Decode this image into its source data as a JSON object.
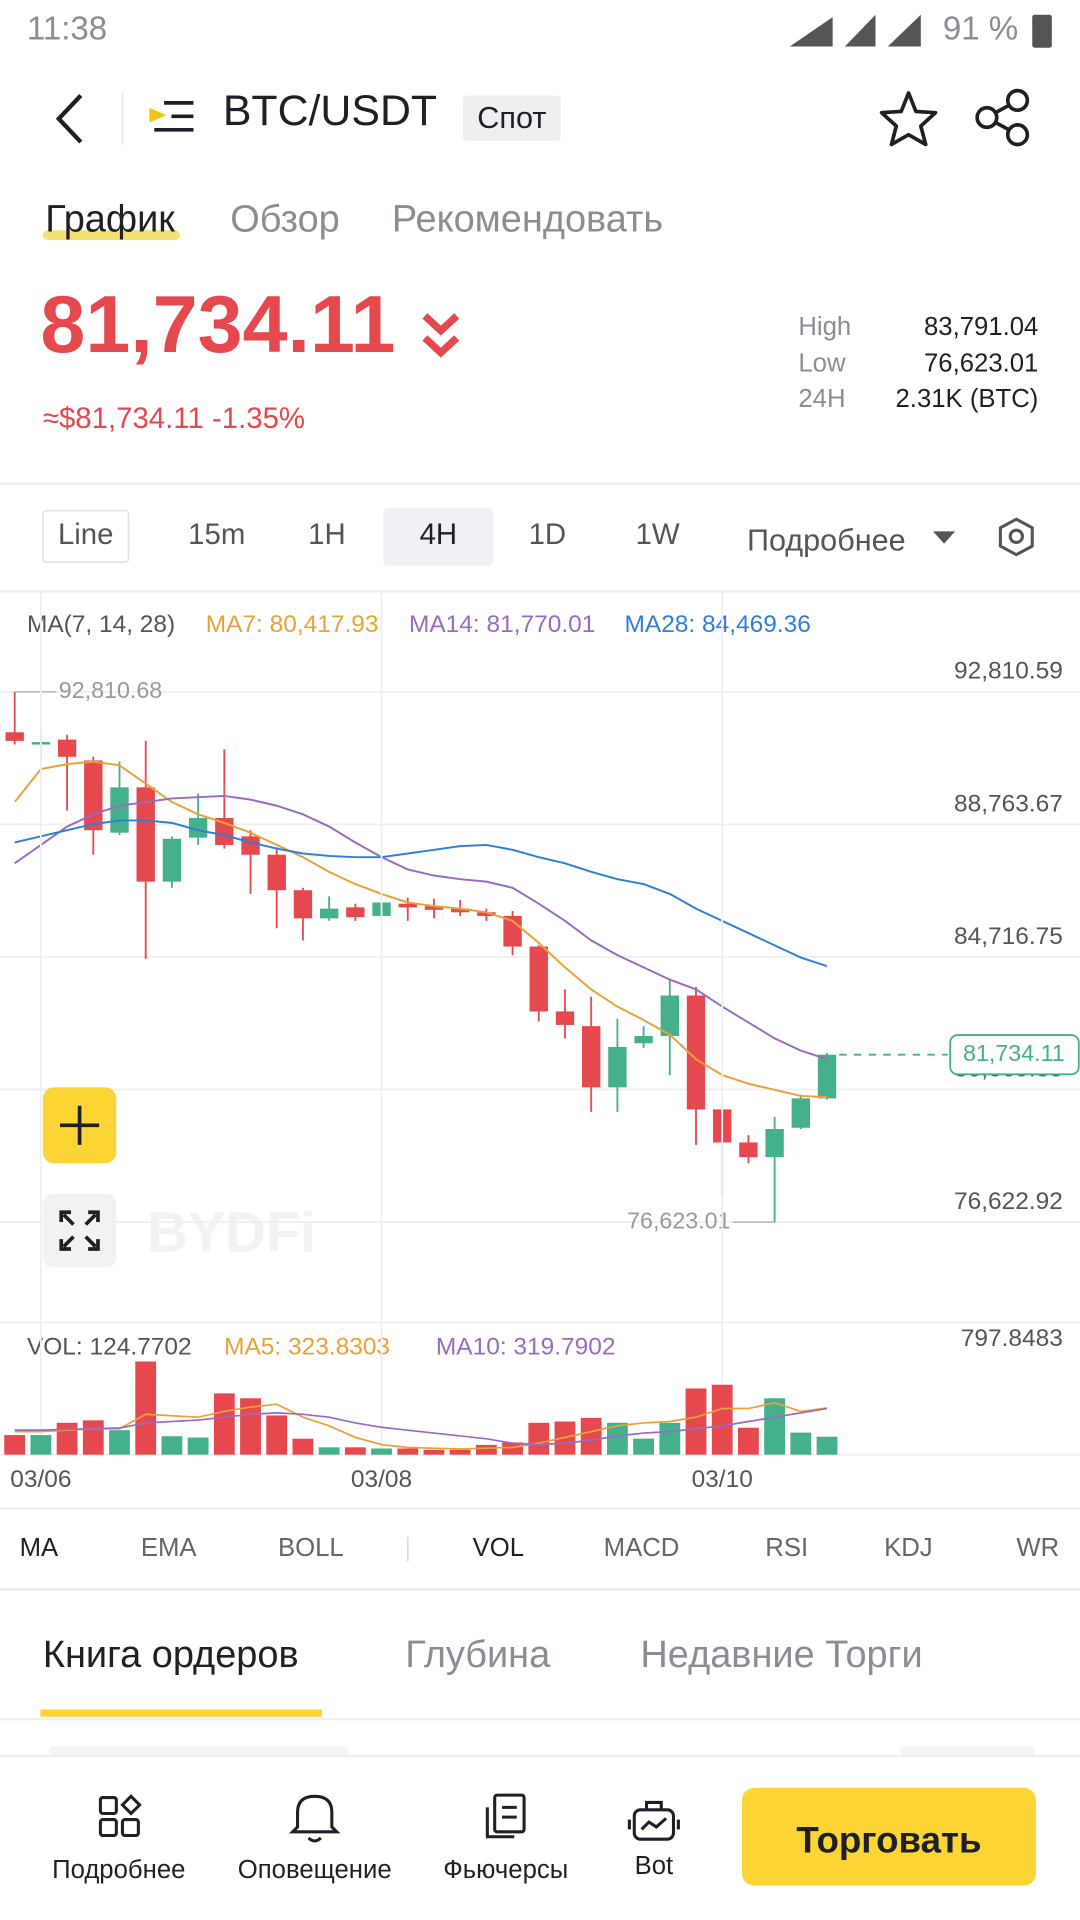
{
  "status_bar": {
    "time": "11:38",
    "battery": "91 %"
  },
  "header": {
    "pair": "BTC/USDT",
    "market": "Спот"
  },
  "tabs": [
    "График",
    "Обзор",
    "Рекомендовать"
  ],
  "ticker": {
    "price": "81,734.11",
    "sub": "≈$81,734.11 -1.35%"
  },
  "stats": [
    {
      "label": "High",
      "value": "83,791.04"
    },
    {
      "label": "Low",
      "value": "76,623.01"
    },
    {
      "label": "24H",
      "value": "2.31K (BTC)"
    }
  ],
  "intervals": [
    "Line",
    "15m",
    "1H",
    "4H",
    "1D",
    "1W"
  ],
  "more": "Подробнее",
  "watermark": "BYDFi",
  "indicators": [
    "MA",
    "EMA",
    "BOLL",
    "VOL",
    "MACD",
    "RSI",
    "KDJ",
    "WR"
  ],
  "book_tabs": [
    "Книга ордеров",
    "Глубина",
    "Недавние Торги"
  ],
  "nav": [
    "Подробнее",
    "Оповещение",
    "Фьючерсы",
    "Bot"
  ],
  "trade_button": "Торговать",
  "chart_data": [
    {
      "type": "candlestick",
      "legend_title": "MA(7, 14, 28)",
      "up_color": "#45b08c",
      "down_color": "#e5484d",
      "open": [
        91577,
        91203,
        91353,
        90717,
        88512,
        89895,
        87017,
        88362,
        88961,
        88400,
        87839,
        86755,
        85896,
        86232,
        85970,
        86344,
        86269,
        86194,
        86082,
        85970,
        85036,
        83055,
        82606,
        80737,
        82083,
        82307,
        83541,
        80064,
        79055,
        78606,
        79504,
        80401
      ],
      "high": [
        92810.68,
        91615,
        91502,
        90830,
        90680,
        91315,
        88400,
        89708,
        91054,
        88587,
        88064,
        86830,
        86568,
        86344,
        86531,
        86531,
        86494,
        86456,
        86194,
        86120,
        85073,
        83727,
        83503,
        82831,
        82606,
        84027,
        83802,
        80214,
        79279,
        79840,
        80513,
        81784
      ],
      "low": [
        91203,
        90755,
        89185,
        87839,
        88437,
        84662,
        86830,
        88138,
        88026,
        86643,
        85596,
        85223,
        85820,
        85820,
        85820,
        85820,
        85896,
        85970,
        85820,
        84774,
        82756,
        82232,
        79990,
        79990,
        81933,
        81111,
        78980,
        77410,
        78420,
        76623.01,
        79466,
        80363
      ],
      "close": [
        91315,
        91278,
        90830,
        88587,
        89895,
        87017,
        88325,
        88961,
        88138,
        87839,
        86755,
        85896,
        86194,
        85933,
        86381,
        86232,
        86157,
        86082,
        85970,
        85036,
        83055,
        82643,
        80737,
        81971,
        82307,
        83541,
        80064,
        79055,
        78606,
        79466,
        80401,
        81734.11
      ],
      "series": [
        {
          "name": "MA7: 80,417.93",
          "color": "#e8a23a",
          "values": [
            89447,
            90456,
            90605,
            90680,
            90568,
            90007,
            89447,
            89073,
            88811,
            88512,
            88138,
            87764,
            87316,
            86942,
            86643,
            86381,
            86269,
            86194,
            86082,
            85820,
            85148,
            84400,
            83727,
            83204,
            82793,
            82345,
            81597,
            81111,
            80849,
            80662,
            80475,
            80438
          ]
        },
        {
          "name": "MA14: 81,770.01",
          "color": "#9b6bbf",
          "values": [
            87577,
            88138,
            88699,
            89073,
            89334,
            89447,
            89558,
            89596,
            89633,
            89521,
            89334,
            89073,
            88699,
            88213,
            87764,
            87391,
            87204,
            87092,
            87017,
            86830,
            86344,
            85820,
            85223,
            84774,
            84400,
            84027,
            83727,
            83204,
            82718,
            82232,
            81859,
            81597
          ]
        },
        {
          "name": "MA28: 84,469.36",
          "color": "#2f7fd6",
          "values": [
            88213,
            88400,
            88587,
            88774,
            88886,
            88886,
            88811,
            88587,
            88437,
            88213,
            88026,
            87877,
            87802,
            87764,
            87764,
            87877,
            87989,
            88101,
            88138,
            87989,
            87764,
            87577,
            87316,
            87092,
            86942,
            86643,
            86194,
            85820,
            85447,
            85073,
            84700,
            84438
          ]
        }
      ],
      "ylim": [
        73560,
        94120
      ],
      "yticks": [
        {
          "value": 92810.59,
          "label": "92,810.59"
        },
        {
          "value": 88763.67,
          "label": "88,763.67"
        },
        {
          "value": 84716.75,
          "label": "84,716.75"
        },
        {
          "value": 80669.83,
          "label": "80,669.83"
        },
        {
          "value": 76622.92,
          "label": "76,622.92"
        }
      ],
      "grid": true,
      "high_label": "92,810.68",
      "low_label": "76,623.01",
      "last_price_label": "81,734.11"
    },
    {
      "type": "bar",
      "title": "VOL: 124.7702",
      "categories": [
        null,
        "03/06",
        null,
        null,
        null,
        null,
        null,
        null,
        null,
        null,
        null,
        null,
        null,
        null,
        "03/08",
        null,
        null,
        null,
        null,
        null,
        null,
        null,
        null,
        null,
        null,
        null,
        null,
        "03/10",
        null,
        null,
        null,
        null
      ],
      "values": [
        136,
        136,
        221,
        238,
        170,
        646,
        128,
        119,
        425,
        391,
        272,
        111,
        51,
        51,
        43,
        43,
        34,
        34,
        68,
        85,
        221,
        230,
        255,
        221,
        111,
        221,
        459,
        485,
        187,
        391,
        153,
        124.7702
      ],
      "series": [
        {
          "name": "MA5: 323.8303",
          "color": "#e8a23a",
          "values": [
            160,
            160,
            170,
            180,
            180,
            280,
            270,
            260,
            300,
            330,
            350,
            260,
            200,
            120,
            70,
            50,
            45,
            40,
            45,
            50,
            80,
            120,
            160,
            200,
            220,
            230,
            260,
            320,
            320,
            360,
            300,
            323.8303
          ]
        },
        {
          "name": "MA10: 319.7902",
          "color": "#9b6bbf",
          "values": [
            170,
            170,
            175,
            180,
            185,
            220,
            230,
            240,
            260,
            280,
            290,
            280,
            260,
            220,
            190,
            170,
            150,
            130,
            110,
            80,
            70,
            80,
            100,
            130,
            150,
            160,
            180,
            200,
            230,
            260,
            290,
            319.7902
          ]
        }
      ],
      "ylim": [
        0,
        797.8483
      ],
      "yticks": [
        797.8483
      ]
    }
  ]
}
